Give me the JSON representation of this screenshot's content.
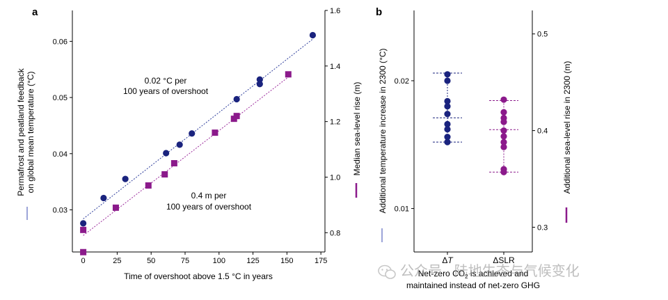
{
  "chart_data": [
    {
      "panel": "a",
      "type": "scatter",
      "xlabel": "Time of overshoot above 1.5 °C in years",
      "ylabel_left": "Permafrost and peatland feedback on global mean temperature (°C)",
      "ylabel_right": "Median sea-level rise (m)",
      "xlim": [
        -8,
        178
      ],
      "ylim_left": [
        0.0225,
        0.0655
      ],
      "ylim_right": [
        0.7306,
        1.6
      ],
      "xticks": [
        0,
        25,
        50,
        75,
        100,
        125,
        150,
        175
      ],
      "yticks_left": [
        0.03,
        0.04,
        0.05,
        0.06
      ],
      "yticks_right": [
        0.8,
        1.0,
        1.2,
        1.4,
        1.6
      ],
      "annotations": [
        "0.02 °C per",
        "100 years of overshoot",
        "0.4 m per",
        "100 years of overshoot"
      ],
      "series": [
        {
          "axis": "left",
          "marker": "circle",
          "color": "#1a237e",
          "points": [
            [
              0,
              0.0276
            ],
            [
              15,
              0.0321
            ],
            [
              31,
              0.0355
            ],
            [
              61,
              0.0401
            ],
            [
              71,
              0.0416
            ],
            [
              80,
              0.0436
            ],
            [
              113,
              0.0497
            ],
            [
              130,
              0.0524
            ],
            [
              130,
              0.0532
            ],
            [
              169,
              0.0611
            ]
          ]
        },
        {
          "axis": "right",
          "marker": "square",
          "color": "#8b1a8b",
          "points": [
            [
              0,
              0.73
            ],
            [
              0,
              0.81
            ],
            [
              24,
              0.89
            ],
            [
              48,
              0.97
            ],
            [
              60,
              1.01
            ],
            [
              67,
              1.05
            ],
            [
              97,
              1.16
            ],
            [
              111,
              1.21
            ],
            [
              113,
              1.22
            ],
            [
              151,
              1.37
            ]
          ]
        }
      ],
      "fit_lines": [
        {
          "axis": "left",
          "color": "#2a3a9a",
          "x": [
            0,
            169
          ],
          "y": [
            0.0284,
            0.0604
          ]
        },
        {
          "axis": "right",
          "color": "#9c2a9c",
          "x": [
            0,
            151
          ],
          "y": [
            0.79,
            1.36
          ]
        }
      ]
    },
    {
      "panel": "b",
      "type": "scatter",
      "categories": [
        "ΔT",
        "ΔSLR"
      ],
      "ylabel_left": "Additional temperature increase in 2300 (°C)",
      "ylabel_right": "Additional sea-level rise in 2300 (m)",
      "ylim_left": [
        0.0066,
        0.0255
      ],
      "ylim_right": [
        0.2744,
        0.5243
      ],
      "yticks_left": [
        0.01,
        0.02
      ],
      "yticks_right": [
        0.3,
        0.4,
        0.5
      ],
      "series": [
        {
          "name": "ΔT",
          "axis": "left",
          "color": "#1a237e",
          "values": [
            0.0205,
            0.02,
            0.0184,
            0.018,
            0.0174,
            0.0166,
            0.0162,
            0.0156,
            0.0152
          ],
          "lines": [
            0.0206,
            0.0171,
            0.0152
          ]
        },
        {
          "name": "ΔSLR",
          "axis": "right",
          "color": "#8b1a8b",
          "values": [
            0.432,
            0.419,
            0.413,
            0.409,
            0.4,
            0.394,
            0.388,
            0.383,
            0.36,
            0.357
          ],
          "lines": [
            0.431,
            0.401,
            0.357
          ]
        }
      ],
      "caption_line1": "Net-zero CO",
      "caption_sub": "2",
      "caption_rest": " is achieved and",
      "caption_line2": "maintained instead of net-zero GHG"
    }
  ],
  "panel_labels": {
    "a": "a",
    "b": "b"
  },
  "watermark": "公众号 · 陆地生态与气候变化"
}
